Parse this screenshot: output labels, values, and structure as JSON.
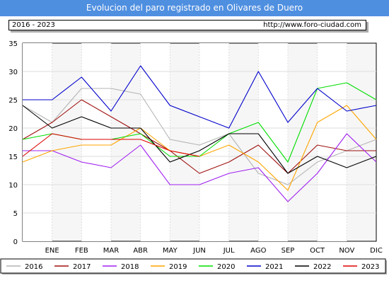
{
  "header": {
    "title": "Evolucion del paro registrado en Olivares de Duero",
    "period": "2016 - 2023",
    "url": "http://www.foro-ciudad.com"
  },
  "chart_data": {
    "type": "line",
    "title": "Evolucion del paro registrado en Olivares de Duero",
    "xlabel": "",
    "ylabel": "",
    "categories": [
      "",
      "ENE",
      "FEB",
      "MAR",
      "ABR",
      "MAY",
      "JUN",
      "JUL",
      "AGO",
      "SEP",
      "OCT",
      "NOV",
      "DIC"
    ],
    "ylim": [
      0,
      35
    ],
    "yticks": [
      0,
      5,
      10,
      15,
      20,
      25,
      30,
      35
    ],
    "grid": true,
    "legend_position": "bottom",
    "series": [
      {
        "name": "2016",
        "color": "#b4b4b4",
        "values": [
          24,
          21,
          27,
          27,
          26,
          18,
          17,
          19,
          12,
          10,
          14,
          16,
          18
        ]
      },
      {
        "name": "2017",
        "color": "#a01010",
        "values": [
          18,
          21,
          25,
          22,
          19,
          16,
          12,
          14,
          17,
          12,
          17,
          16,
          16
        ]
      },
      {
        "name": "2018",
        "color": "#a020f0",
        "values": [
          16,
          16,
          14,
          13,
          17,
          10,
          10,
          12,
          13,
          7,
          12,
          19,
          14
        ]
      },
      {
        "name": "2019",
        "color": "#ffa500",
        "values": [
          14,
          16,
          17,
          17,
          20,
          16,
          15,
          17,
          14,
          9,
          21,
          24,
          18
        ]
      },
      {
        "name": "2020",
        "color": "#00dd00",
        "values": [
          18,
          19,
          18,
          18,
          19,
          15,
          15,
          19,
          21,
          14,
          27,
          28,
          25
        ]
      },
      {
        "name": "2021",
        "color": "#0000cc",
        "values": [
          25,
          25,
          29,
          23,
          31,
          24,
          22,
          20,
          30,
          21,
          27,
          23,
          24
        ]
      },
      {
        "name": "2022",
        "color": "#000000",
        "values": [
          24,
          20,
          22,
          20,
          20,
          14,
          16,
          19,
          19,
          12,
          15,
          13,
          15
        ]
      },
      {
        "name": "2023",
        "color": "#dd0000",
        "values": [
          15,
          19,
          18,
          18,
          18,
          16,
          15,
          null,
          null,
          null,
          null,
          null,
          null
        ]
      }
    ]
  }
}
